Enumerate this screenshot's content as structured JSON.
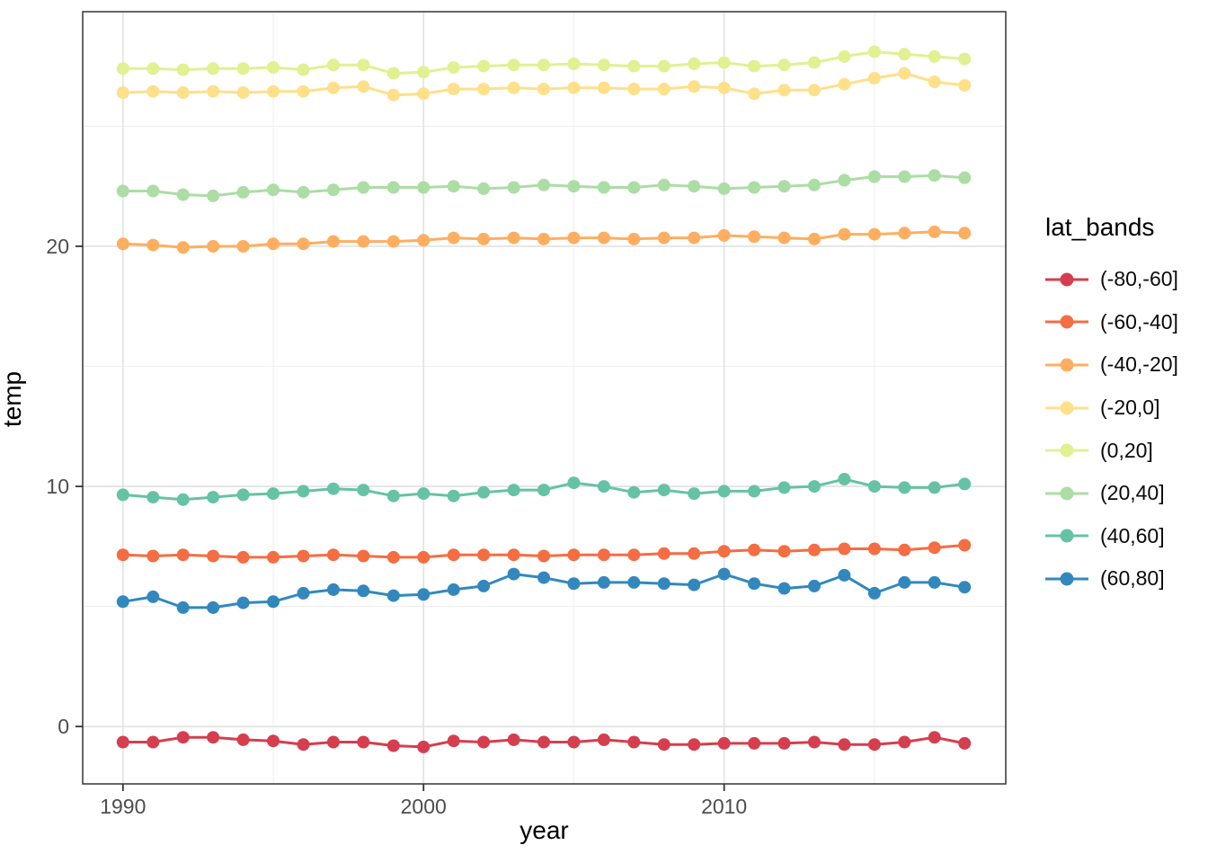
{
  "figure": {
    "x_axis_title": "year",
    "y_axis_title": "temp",
    "legend_title": "lat_bands"
  },
  "chart_data": {
    "type": "line",
    "title": "",
    "xlabel": "year",
    "ylabel": "temp",
    "legend_title": "lat_bands",
    "legend_position": "right",
    "grid": true,
    "panel_border_color": "#333333",
    "major_grid_color": "#e4e4e4",
    "minor_grid_color": "#efefef",
    "tick_color": "#333333",
    "tick_label_color": "#4d4d4d",
    "xlim": [
      1988.66,
      2019.37
    ],
    "ylim": [
      -2.39,
      29.77
    ],
    "x_ticks": [
      1990,
      2000,
      2010
    ],
    "x_minor_ticks": [
      1995,
      2005,
      2015
    ],
    "y_ticks": [
      0,
      10,
      20
    ],
    "y_minor_ticks": [
      5,
      15,
      25
    ],
    "x": [
      1990,
      1991,
      1992,
      1993,
      1994,
      1995,
      1996,
      1997,
      1998,
      1999,
      2000,
      2001,
      2002,
      2003,
      2004,
      2005,
      2006,
      2007,
      2008,
      2009,
      2010,
      2011,
      2012,
      2013,
      2014,
      2015,
      2016,
      2017,
      2018
    ],
    "series": [
      {
        "name": "(-80,-60]",
        "color": "#d53e4f",
        "values": [
          -0.65,
          -0.65,
          -0.45,
          -0.45,
          -0.55,
          -0.6,
          -0.75,
          -0.65,
          -0.65,
          -0.8,
          -0.85,
          -0.6,
          -0.65,
          -0.55,
          -0.65,
          -0.65,
          -0.55,
          -0.65,
          -0.75,
          -0.75,
          -0.7,
          -0.7,
          -0.7,
          -0.65,
          -0.75,
          -0.75,
          -0.65,
          -0.45,
          -0.7
        ]
      },
      {
        "name": "(-60,-40]",
        "color": "#f46d43",
        "values": [
          7.15,
          7.1,
          7.15,
          7.1,
          7.05,
          7.05,
          7.1,
          7.15,
          7.1,
          7.05,
          7.05,
          7.15,
          7.15,
          7.15,
          7.1,
          7.15,
          7.15,
          7.15,
          7.2,
          7.2,
          7.3,
          7.35,
          7.3,
          7.35,
          7.4,
          7.4,
          7.35,
          7.45,
          7.55
        ]
      },
      {
        "name": "(-40,-20]",
        "color": "#fdae61",
        "values": [
          20.1,
          20.05,
          19.95,
          20.0,
          20.0,
          20.1,
          20.1,
          20.2,
          20.2,
          20.2,
          20.25,
          20.35,
          20.3,
          20.35,
          20.3,
          20.35,
          20.35,
          20.3,
          20.35,
          20.35,
          20.45,
          20.4,
          20.35,
          20.3,
          20.5,
          20.5,
          20.55,
          20.6,
          20.55
        ]
      },
      {
        "name": "(-20,0]",
        "color": "#fee08b",
        "values": [
          26.4,
          26.45,
          26.4,
          26.45,
          26.4,
          26.45,
          26.45,
          26.6,
          26.65,
          26.3,
          26.35,
          26.55,
          26.55,
          26.6,
          26.55,
          26.6,
          26.6,
          26.55,
          26.55,
          26.65,
          26.6,
          26.35,
          26.5,
          26.5,
          26.75,
          27.0,
          27.2,
          26.85,
          26.7
        ]
      },
      {
        "name": "(0,20]",
        "color": "#e1f091",
        "values": [
          27.4,
          27.4,
          27.35,
          27.4,
          27.4,
          27.45,
          27.35,
          27.55,
          27.55,
          27.2,
          27.25,
          27.45,
          27.5,
          27.55,
          27.55,
          27.6,
          27.55,
          27.5,
          27.5,
          27.6,
          27.65,
          27.5,
          27.55,
          27.65,
          27.9,
          28.1,
          28.0,
          27.9,
          27.8
        ]
      },
      {
        "name": "(20,40]",
        "color": "#abdda4",
        "values": [
          22.3,
          22.3,
          22.15,
          22.1,
          22.25,
          22.35,
          22.25,
          22.35,
          22.45,
          22.45,
          22.45,
          22.5,
          22.4,
          22.45,
          22.55,
          22.5,
          22.45,
          22.45,
          22.55,
          22.5,
          22.4,
          22.45,
          22.5,
          22.55,
          22.75,
          22.9,
          22.9,
          22.95,
          22.85
        ]
      },
      {
        "name": "(40,60]",
        "color": "#66c2a5",
        "values": [
          9.65,
          9.55,
          9.45,
          9.55,
          9.65,
          9.7,
          9.8,
          9.9,
          9.85,
          9.6,
          9.7,
          9.6,
          9.75,
          9.85,
          9.85,
          10.15,
          10.0,
          9.75,
          9.85,
          9.7,
          9.8,
          9.8,
          9.95,
          10.0,
          10.3,
          10.0,
          9.95,
          9.95,
          10.1
        ]
      },
      {
        "name": "(60,80]",
        "color": "#3288bd",
        "values": [
          5.2,
          5.4,
          4.95,
          4.95,
          5.15,
          5.2,
          5.55,
          5.7,
          5.65,
          5.45,
          5.5,
          5.7,
          5.85,
          6.35,
          6.2,
          5.95,
          6.0,
          6.0,
          5.95,
          5.9,
          6.35,
          5.95,
          5.75,
          5.85,
          6.3,
          5.55,
          6.0,
          6.0,
          5.8
        ]
      }
    ]
  }
}
